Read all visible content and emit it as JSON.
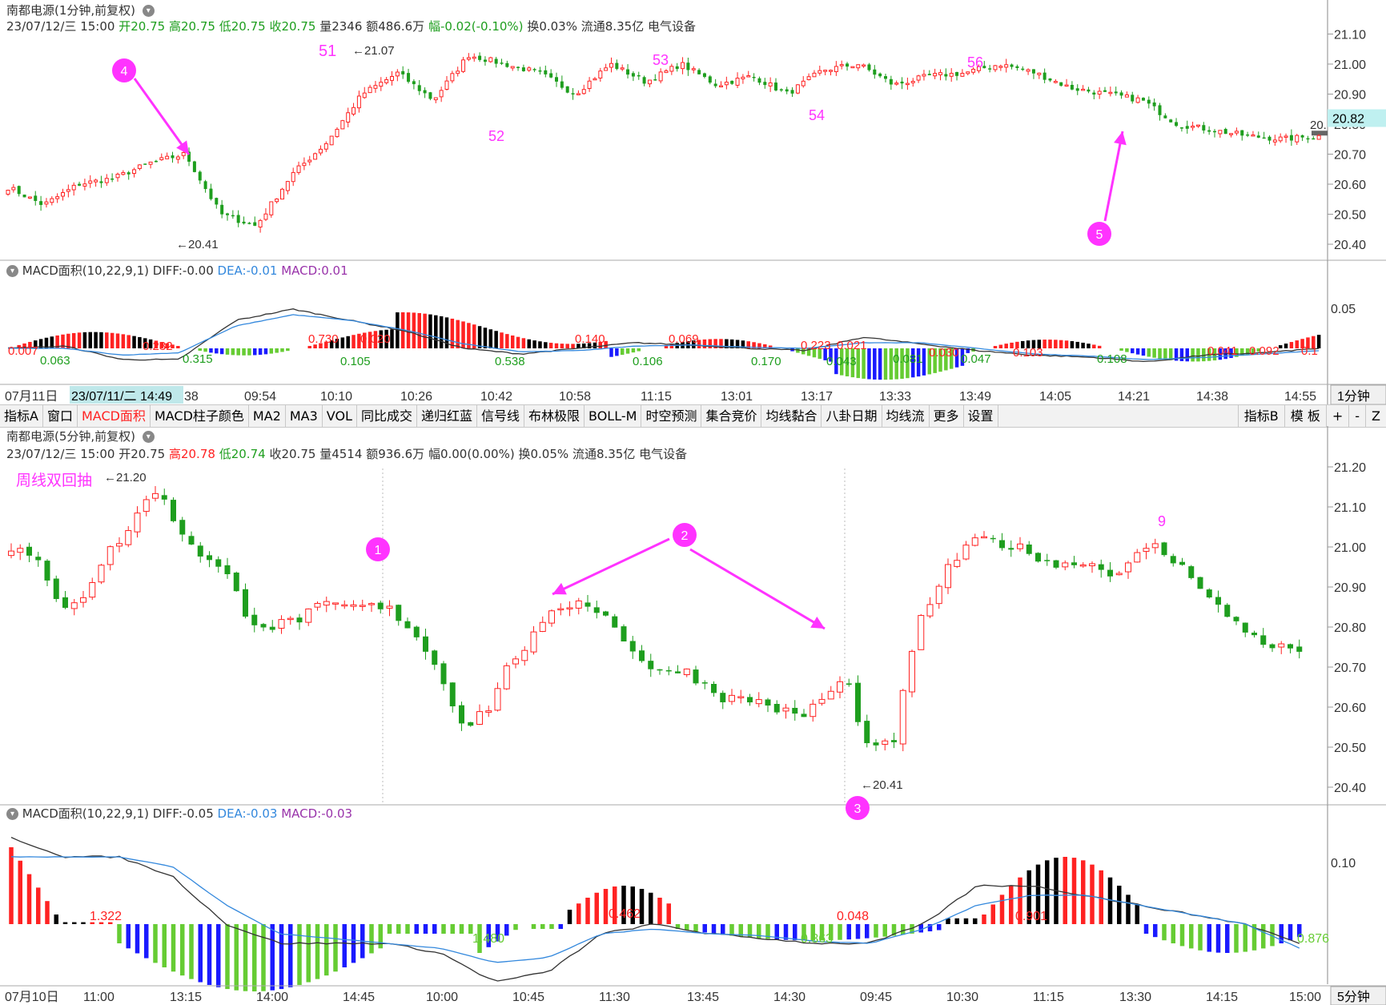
{
  "top": {
    "title": "南都电源(1分钟,前复权)",
    "quote": {
      "date": "23/07/12/三 15:00",
      "open_label": "开",
      "open": "20.75",
      "high_label": "高",
      "high": "20.75",
      "low_label": "低",
      "low": "20.75",
      "close_label": "收",
      "close": "20.75",
      "vol_label": "量",
      "vol": "2346",
      "amt_label": "额",
      "amt": "486.6万",
      "chg_label": "幅",
      "chg": "-0.02(-0.10%)",
      "turn": "换0.03%",
      "float": "流通8.35亿",
      "sector": "电气设备"
    },
    "price_axis": [
      "21.10",
      "21.00",
      "20.90",
      "20.80",
      "20.70",
      "20.60",
      "20.50",
      "20.40"
    ],
    "current_price": "20.82",
    "current_price_short": "20.",
    "high_note": "21.07",
    "low_note": "20.41",
    "wave_labels": [
      "51",
      "52",
      "53",
      "54",
      "56"
    ],
    "markers": [
      "4",
      "5"
    ],
    "macd": {
      "title": "MACD面积(10,22,9,1)",
      "diff_label": "DIFF:",
      "diff": "-0.00",
      "dea_label": "DEA:",
      "dea": "-0.01",
      "macd_label": "MACD:",
      "macd": "0.01",
      "axis": "0.05",
      "areas": [
        "0.007",
        "0.063",
        "0.232",
        "0.315",
        "0.730",
        "0.020",
        "0.105",
        "0.538",
        "0.140",
        "0.106",
        "0.069",
        "0.170",
        "0.223",
        "0.021",
        "0.043",
        "0.081",
        "0.030",
        "0.047",
        "0.103",
        "0.108",
        "0.041",
        "0.092",
        "0.1"
      ]
    },
    "time_axis": [
      "07月11日",
      "09:54",
      "10:10",
      "10:26",
      "10:42",
      "10:58",
      "11:15",
      "13:01",
      "13:17",
      "13:33",
      "13:49",
      "14:05",
      "14:21",
      "14:38",
      "14:55"
    ],
    "cursor_label": "23/07/11/二 14:49",
    "cursor_tail": "38",
    "period": "1分钟"
  },
  "toolbar": {
    "items": [
      "指标A",
      "窗口",
      "MACD面积",
      "MACD柱子颜色",
      "MA2",
      "MA3",
      "VOL",
      "同比成交",
      "递归红蓝",
      "信号线",
      "布林极限",
      "BOLL-M",
      "时空预测",
      "集合竞价",
      "均线黏合",
      "八卦日期",
      "均线流",
      "更多",
      "设置"
    ],
    "active": "MACD面积",
    "right": [
      "指标B",
      "模 板",
      "+",
      "-",
      "Z"
    ]
  },
  "bottom": {
    "title": "南都电源(5分钟,前复权)",
    "quote": {
      "date": "23/07/12/三 15:00",
      "open_label": "开",
      "open": "20.75",
      "high_label": "高",
      "high": "20.78",
      "low_label": "低",
      "low": "20.74",
      "close_label": "收",
      "close": "20.75",
      "vol_label": "量",
      "vol": "4514",
      "amt_label": "额",
      "amt": "936.6万",
      "chg_label": "幅",
      "chg": "0.00(0.00%)",
      "turn": "换0.05%",
      "float": "流通8.35亿",
      "sector": "电气设备"
    },
    "note": "周线双回抽",
    "price_axis": [
      "21.20",
      "21.10",
      "21.00",
      "20.90",
      "20.80",
      "20.70",
      "20.60",
      "20.50",
      "20.40"
    ],
    "high_note": "21.20",
    "low_note": "20.41",
    "wave_label": "9",
    "markers": [
      "1",
      "2",
      "3"
    ],
    "macd": {
      "title": "MACD面积(10,22,9,1)",
      "diff_label": "DIFF:",
      "diff": "-0.05",
      "dea_label": "DEA:",
      "dea": "-0.03",
      "macd_label": "MACD:",
      "macd": "-0.03",
      "axis": "0.10",
      "areas": [
        "1.322",
        "1.480",
        "0.462",
        "0.363",
        "0.048",
        "0.901",
        "0.876"
      ]
    },
    "time_axis": [
      "07月10日",
      "11:00",
      "13:15",
      "14:00",
      "14:45",
      "10:00",
      "10:45",
      "11:30",
      "13:45",
      "14:30",
      "09:45",
      "10:30",
      "11:15",
      "13:30",
      "14:15",
      "15:00"
    ],
    "period": "5分钟"
  },
  "colors": {
    "up": "#ff2222",
    "down": "#1e9e1e",
    "dark": "#000000",
    "blue": "#1a1aff",
    "macd_green": "#66cc33",
    "magenta": "#ff33ff",
    "dea": "#3388dd",
    "macd_label": "#9933aa"
  }
}
